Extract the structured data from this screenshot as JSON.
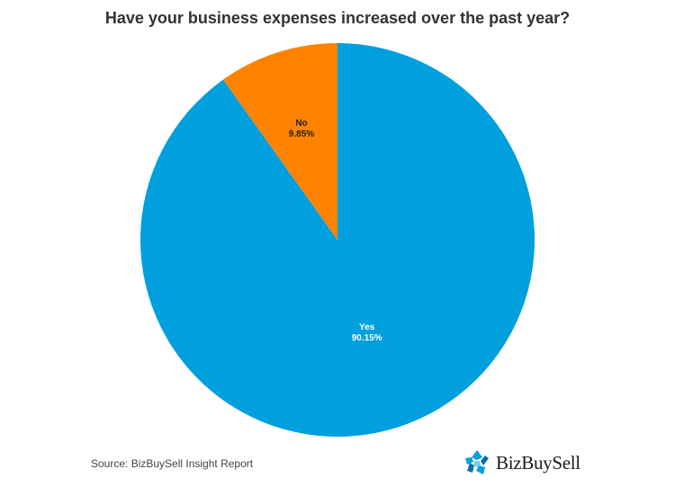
{
  "chart_data": {
    "type": "pie",
    "title": "Have your business expenses increased over the past year?",
    "slices": [
      {
        "label": "Yes",
        "value": 90.15,
        "value_label": "90.15%",
        "color": "#009fde"
      },
      {
        "label": "No",
        "value": 9.85,
        "value_label": "9.85%",
        "color": "#ff8300"
      }
    ]
  },
  "source": "Source: BizBuySell Insight Report",
  "logo": {
    "text": "BizBuySell",
    "icon": "bizbuysell-logo-icon"
  }
}
